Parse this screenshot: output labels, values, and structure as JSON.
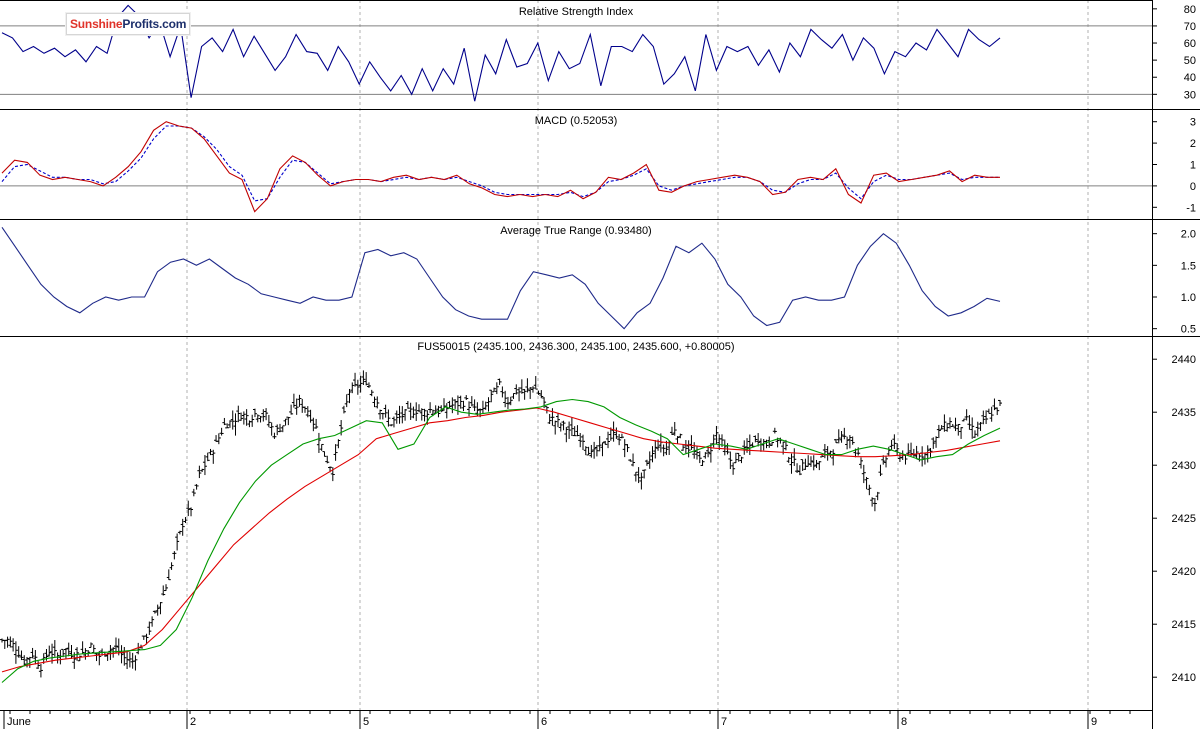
{
  "logo": {
    "part1": "Sunshine",
    "part2": "Profits.com"
  },
  "colors": {
    "rsi": "#00008b",
    "macd": "#c00000",
    "macd_signal": "#0000cc",
    "atr": "#1f2a8a",
    "bars": "#000000",
    "ma_fast": "#009900",
    "ma_slow": "#e00000",
    "grid": "#b0b0b0",
    "ref_line": "#808080"
  },
  "x_axis": {
    "labels": [
      "June",
      "2",
      "5",
      "6",
      "7",
      "8",
      "9"
    ]
  },
  "chart_data": [
    {
      "type": "line",
      "title": "Relative Strength Index",
      "ylim": [
        22,
        84
      ],
      "y_ticks": [
        30,
        40,
        50,
        60,
        70,
        80
      ],
      "reference_lines": [
        30,
        70
      ],
      "series": [
        {
          "values": [
            66,
            63,
            55,
            58,
            54,
            57,
            52,
            56,
            49,
            58,
            54,
            75,
            82,
            76,
            63,
            72,
            52,
            70,
            28,
            58,
            63,
            55,
            68,
            52,
            64,
            54,
            44,
            52,
            65,
            55,
            54,
            44,
            58,
            49,
            36,
            49,
            40,
            32,
            41,
            30,
            45,
            32,
            45,
            36,
            57,
            26,
            53,
            42,
            62,
            46,
            48,
            60,
            38,
            55,
            45,
            48,
            65,
            35,
            58,
            58,
            55,
            65,
            58,
            36,
            42,
            52,
            32,
            65,
            44,
            58,
            55,
            58,
            47,
            56,
            43,
            60,
            52,
            68,
            62,
            57,
            65,
            50,
            63,
            57,
            42,
            55,
            52,
            60,
            56,
            68,
            60,
            52,
            68,
            62,
            58,
            63
          ]
        }
      ]
    },
    {
      "type": "line",
      "title": "MACD (0.52053)",
      "ylim": [
        -1.5,
        3.5
      ],
      "y_ticks": [
        -1,
        0,
        1,
        2,
        3
      ],
      "reference_lines": [
        0
      ],
      "series": [
        {
          "values": [
            0.6,
            1.2,
            1.1,
            0.5,
            0.3,
            0.4,
            0.3,
            0.2,
            0.0,
            0.4,
            0.9,
            1.6,
            2.6,
            3.0,
            2.8,
            2.7,
            2.2,
            1.4,
            0.6,
            0.3,
            -1.2,
            -0.6,
            0.8,
            1.4,
            1.1,
            0.5,
            0.0,
            0.2,
            0.3,
            0.3,
            0.2,
            0.4,
            0.5,
            0.3,
            0.4,
            0.3,
            0.5,
            0.1,
            -0.1,
            -0.4,
            -0.5,
            -0.4,
            -0.5,
            -0.4,
            -0.5,
            -0.2,
            -0.6,
            -0.3,
            0.4,
            0.3,
            0.6,
            1.0,
            -0.2,
            -0.3,
            0.0,
            0.2,
            0.3,
            0.4,
            0.5,
            0.4,
            0.2,
            -0.4,
            -0.3,
            0.3,
            0.4,
            0.3,
            0.8,
            -0.4,
            -0.8,
            0.5,
            0.6,
            0.2,
            0.3,
            0.4,
            0.5,
            0.7,
            0.2,
            0.5,
            0.4,
            0.4
          ]
        },
        {
          "values": [
            0.2,
            0.9,
            1.0,
            0.7,
            0.4,
            0.4,
            0.3,
            0.3,
            0.1,
            0.2,
            0.7,
            1.3,
            2.2,
            2.8,
            2.8,
            2.7,
            2.3,
            1.7,
            0.9,
            0.5,
            -0.7,
            -0.6,
            0.4,
            1.2,
            1.1,
            0.6,
            0.1,
            0.2,
            0.3,
            0.3,
            0.2,
            0.3,
            0.4,
            0.3,
            0.4,
            0.3,
            0.4,
            0.2,
            0.0,
            -0.3,
            -0.4,
            -0.4,
            -0.4,
            -0.4,
            -0.4,
            -0.3,
            -0.5,
            -0.3,
            0.2,
            0.3,
            0.5,
            0.8,
            0.0,
            -0.2,
            0.0,
            0.1,
            0.2,
            0.3,
            0.4,
            0.4,
            0.2,
            -0.2,
            -0.3,
            0.1,
            0.3,
            0.3,
            0.6,
            -0.1,
            -0.6,
            0.2,
            0.5,
            0.3,
            0.3,
            0.4,
            0.5,
            0.6,
            0.3,
            0.4,
            0.4,
            0.4
          ]
        }
      ]
    },
    {
      "type": "line",
      "title": "Average True Range (0.93480)",
      "ylim": [
        0.4,
        2.2
      ],
      "y_ticks": [
        0.5,
        1.0,
        1.5,
        2.0
      ],
      "series": [
        {
          "values": [
            2.1,
            1.8,
            1.5,
            1.2,
            1.0,
            0.85,
            0.75,
            0.9,
            1.0,
            0.95,
            1.0,
            1.0,
            1.4,
            1.55,
            1.6,
            1.5,
            1.6,
            1.45,
            1.3,
            1.2,
            1.05,
            1.0,
            0.95,
            0.9,
            1.0,
            0.95,
            0.95,
            1.0,
            1.7,
            1.75,
            1.65,
            1.7,
            1.6,
            1.3,
            1.0,
            0.8,
            0.7,
            0.65,
            0.65,
            0.65,
            1.1,
            1.4,
            1.35,
            1.3,
            1.35,
            1.2,
            0.9,
            0.7,
            0.5,
            0.75,
            0.9,
            1.3,
            1.8,
            1.7,
            1.85,
            1.6,
            1.2,
            1.0,
            0.7,
            0.55,
            0.6,
            0.95,
            1.0,
            0.95,
            0.95,
            1.0,
            1.5,
            1.8,
            2.0,
            1.85,
            1.5,
            1.1,
            0.85,
            0.7,
            0.75,
            0.85,
            0.98,
            0.93
          ]
        }
      ]
    },
    {
      "type": "bar",
      "style": "ohlc",
      "title": "FUS50015 (2435.100, 2436.300, 2435.100, 2435.600, +0.80005)",
      "ylim": [
        2407,
        2442
      ],
      "y_ticks": [
        2410,
        2415,
        2420,
        2425,
        2430,
        2435,
        2440
      ],
      "closes": [
        2413.5,
        2412.8,
        2411.5,
        2412.2,
        2411.0,
        2412.5,
        2412.0,
        2412.6,
        2412.1,
        2412.3,
        2412.9,
        2412.0,
        2412.5,
        2412.8,
        2411.8,
        2411.5,
        2413.0,
        2414.5,
        2416.5,
        2418.5,
        2421.5,
        2424.5,
        2426.0,
        2429.0,
        2430.5,
        2432.0,
        2433.8,
        2434.2,
        2434.8,
        2434.5,
        2435.0,
        2434.6,
        2433.0,
        2433.8,
        2434.9,
        2436.0,
        2435.2,
        2433.5,
        2431.0,
        2429.5,
        2433.5,
        2437.0,
        2437.5,
        2438.0,
        2436.5,
        2435.0,
        2434.0,
        2434.5,
        2435.0,
        2435.2,
        2435.0,
        2435.3,
        2435.0,
        2435.6,
        2435.8,
        2436.0,
        2435.2,
        2435.0,
        2436.5,
        2437.5,
        2436.0,
        2437.0,
        2436.8,
        2437.5,
        2436.5,
        2434.5,
        2434.0,
        2433.5,
        2433.0,
        2432.5,
        2431.0,
        2431.5,
        2432.5,
        2433.0,
        2432.0,
        2430.0,
        2428.5,
        2430.5,
        2432.0,
        2431.5,
        2433.5,
        2432.0,
        2431.5,
        2430.5,
        2431.0,
        2433.0,
        2431.5,
        2430.0,
        2431.0,
        2431.8,
        2432.5,
        2432.0,
        2432.8,
        2432.0,
        2430.5,
        2429.5,
        2430.5,
        2430.0,
        2431.0,
        2431.5,
        2432.5,
        2432.8,
        2431.0,
        2428.5,
        2426.5,
        2430.0,
        2432.0,
        2431.0,
        2430.8,
        2431.2,
        2431.0,
        2432.0,
        2433.5,
        2434.0,
        2433.5,
        2434.2,
        2433.0,
        2434.0,
        2435.0,
        2435.6
      ],
      "series": [
        {
          "name": "",
          "values": [
            2409.5,
            2410.8,
            2411.5,
            2411.8,
            2412.0,
            2412.2,
            2412.3,
            2412.4,
            2412.5,
            2412.6,
            2413.0,
            2414.5,
            2417.5,
            2421.0,
            2424.0,
            2426.5,
            2428.5,
            2430.0,
            2431.0,
            2432.0,
            2432.5,
            2432.8,
            2433.5,
            2434.2,
            2434.0,
            2431.5,
            2432.0,
            2434.5,
            2435.5,
            2435.0,
            2434.8,
            2435.0,
            2435.2,
            2435.3,
            2435.5,
            2436.0,
            2436.2,
            2436.0,
            2435.5,
            2434.5,
            2433.8,
            2433.2,
            2432.5,
            2431.0,
            2431.5,
            2432.0,
            2431.8,
            2431.5,
            2432.0,
            2432.5,
            2432.0,
            2431.5,
            2431.0,
            2431.0,
            2431.5,
            2431.8,
            2431.5,
            2431.0,
            2430.5,
            2430.8,
            2431.0,
            2432.0,
            2432.8,
            2433.5
          ]
        },
        {
          "name": "",
          "values": [
            2410.5,
            2411.0,
            2411.3,
            2411.6,
            2411.8,
            2412.0,
            2412.2,
            2412.4,
            2413.0,
            2414.5,
            2416.5,
            2418.5,
            2420.5,
            2422.5,
            2424.0,
            2425.5,
            2426.8,
            2428.0,
            2429.0,
            2430.0,
            2431.0,
            2432.5,
            2433.0,
            2433.5,
            2434.0,
            2434.2,
            2434.5,
            2434.7,
            2435.0,
            2435.2,
            2435.4,
            2435.0,
            2434.5,
            2434.0,
            2433.5,
            2433.0,
            2432.5,
            2432.2,
            2432.0,
            2431.8,
            2431.6,
            2431.5,
            2431.4,
            2431.3,
            2431.2,
            2431.1,
            2431.0,
            2430.9,
            2430.8,
            2430.8,
            2430.9,
            2431.0,
            2431.2,
            2431.4,
            2431.7,
            2432.0,
            2432.3
          ]
        }
      ]
    }
  ]
}
